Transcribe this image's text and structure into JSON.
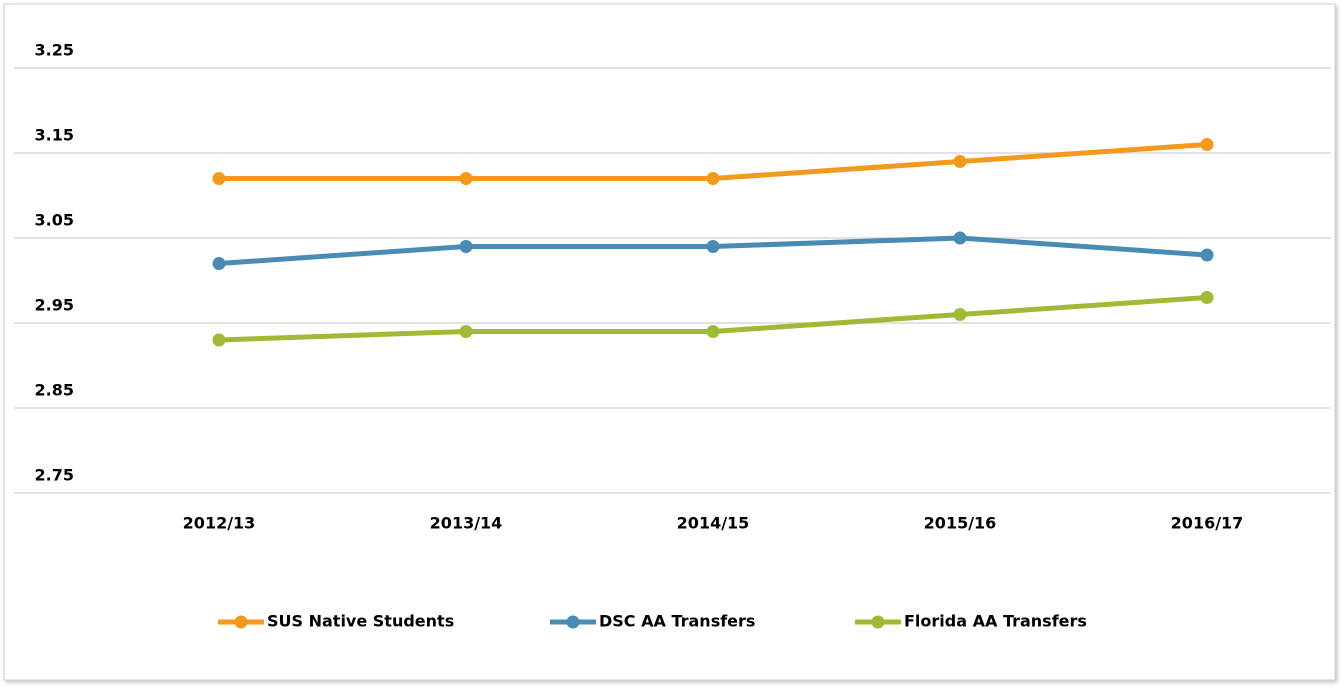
{
  "chart_data": {
    "type": "line",
    "categories": [
      "2012/13",
      "2013/14",
      "2014/15",
      "2015/16",
      "2016/17"
    ],
    "series": [
      {
        "name": "SUS Native Students",
        "color": "#f39a1e",
        "values": [
          3.12,
          3.12,
          3.12,
          3.14,
          3.16
        ]
      },
      {
        "name": "DSC AA Transfers",
        "color": "#4a8bb6",
        "values": [
          3.02,
          3.04,
          3.04,
          3.05,
          3.03
        ]
      },
      {
        "name": "Florida AA Transfers",
        "color": "#9fba34",
        "values": [
          2.93,
          2.94,
          2.94,
          2.96,
          2.98
        ]
      }
    ],
    "ylim": [
      2.75,
      3.3
    ],
    "yticks": [
      2.75,
      2.85,
      2.95,
      3.05,
      3.15,
      3.25
    ],
    "grid": true,
    "legend": "bottom"
  }
}
